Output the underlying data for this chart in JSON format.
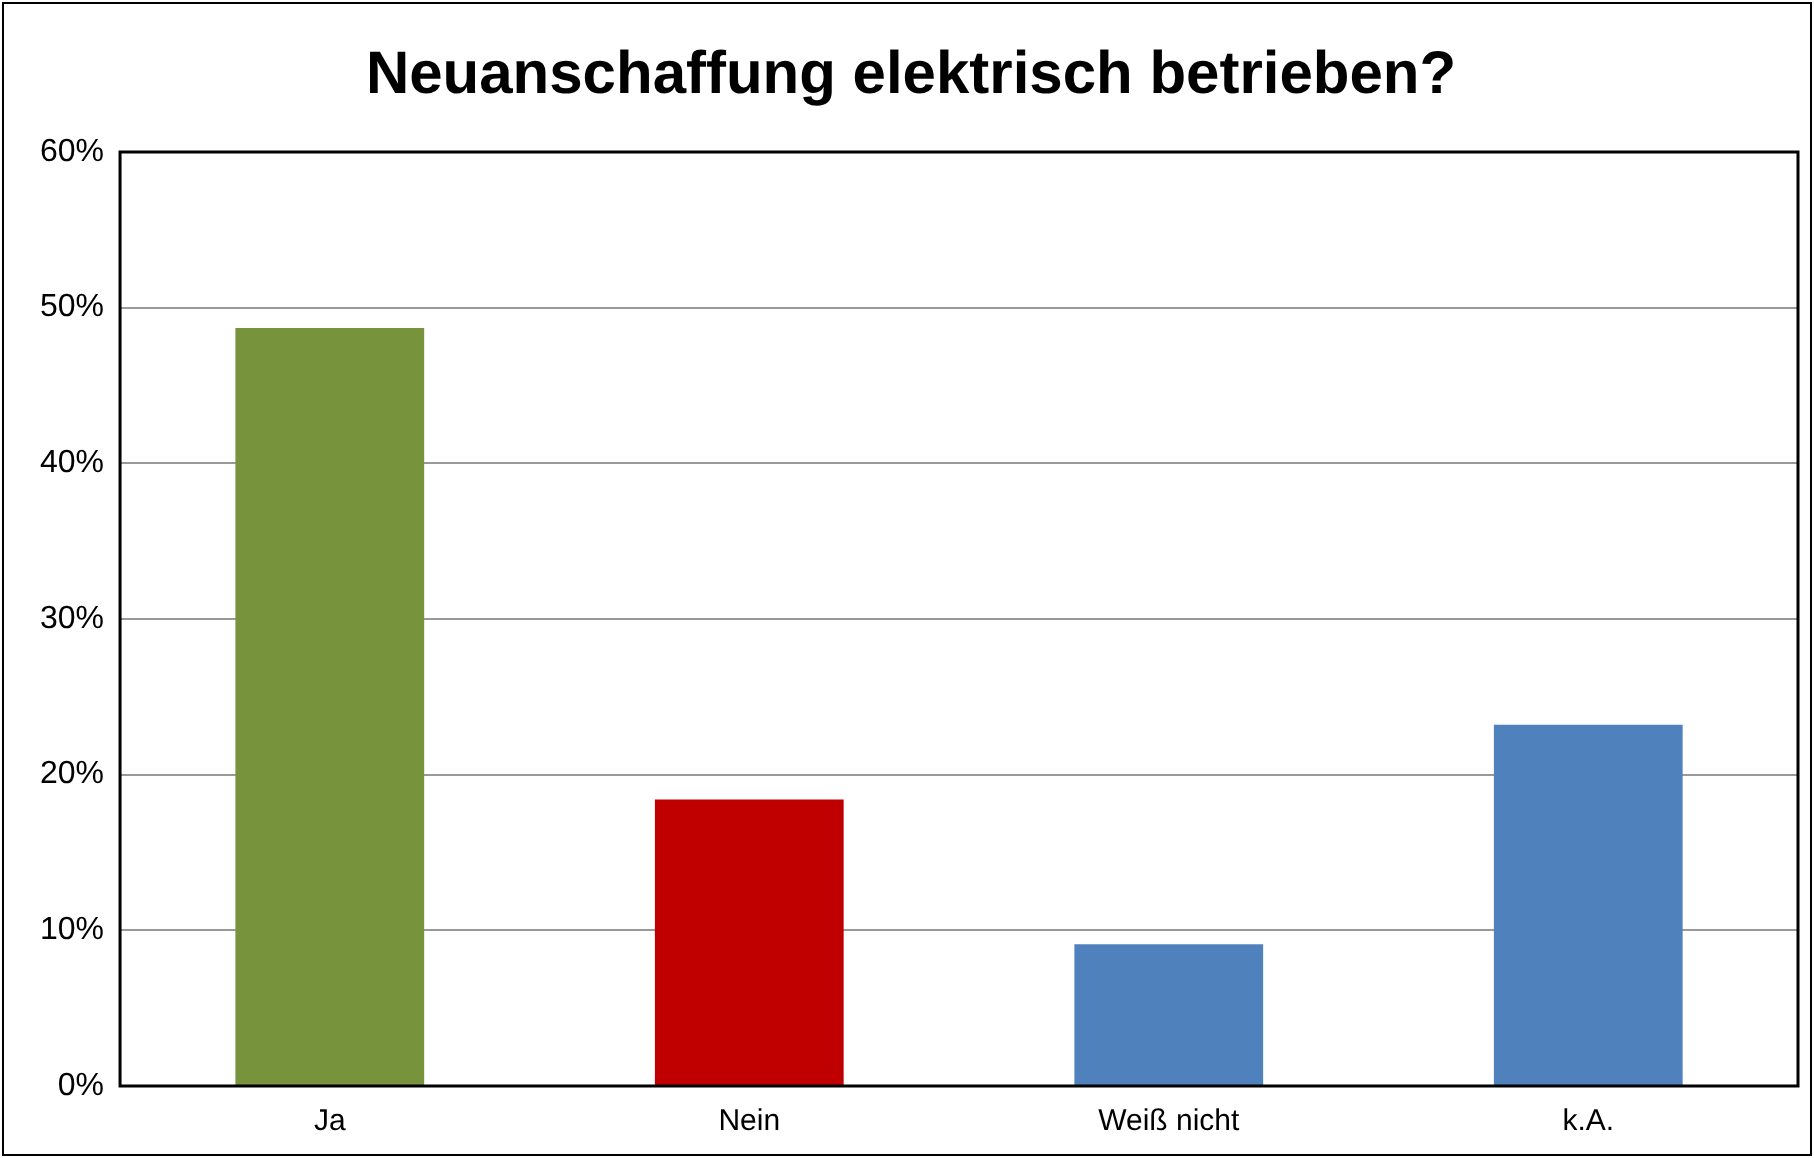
{
  "chart_data": {
    "type": "bar",
    "title": "Neuanschaffung elektrisch betrieben?",
    "categories": [
      "Ja",
      "Nein",
      "Weiß nicht",
      "k.A."
    ],
    "values": [
      48.7,
      18.4,
      9.1,
      23.2
    ],
    "colors": [
      "#77933c",
      "#c00000",
      "#4f81bd",
      "#4f81bd"
    ],
    "ylim": [
      0,
      60
    ],
    "yticks": [
      {
        "value": 0,
        "label": "0%"
      },
      {
        "value": 10,
        "label": "10%"
      },
      {
        "value": 20,
        "label": "20%"
      },
      {
        "value": 30,
        "label": "30%"
      },
      {
        "value": 40,
        "label": "40%"
      },
      {
        "value": 50,
        "label": "50%"
      },
      {
        "value": 60,
        "label": "60%"
      }
    ],
    "grid": "y"
  }
}
